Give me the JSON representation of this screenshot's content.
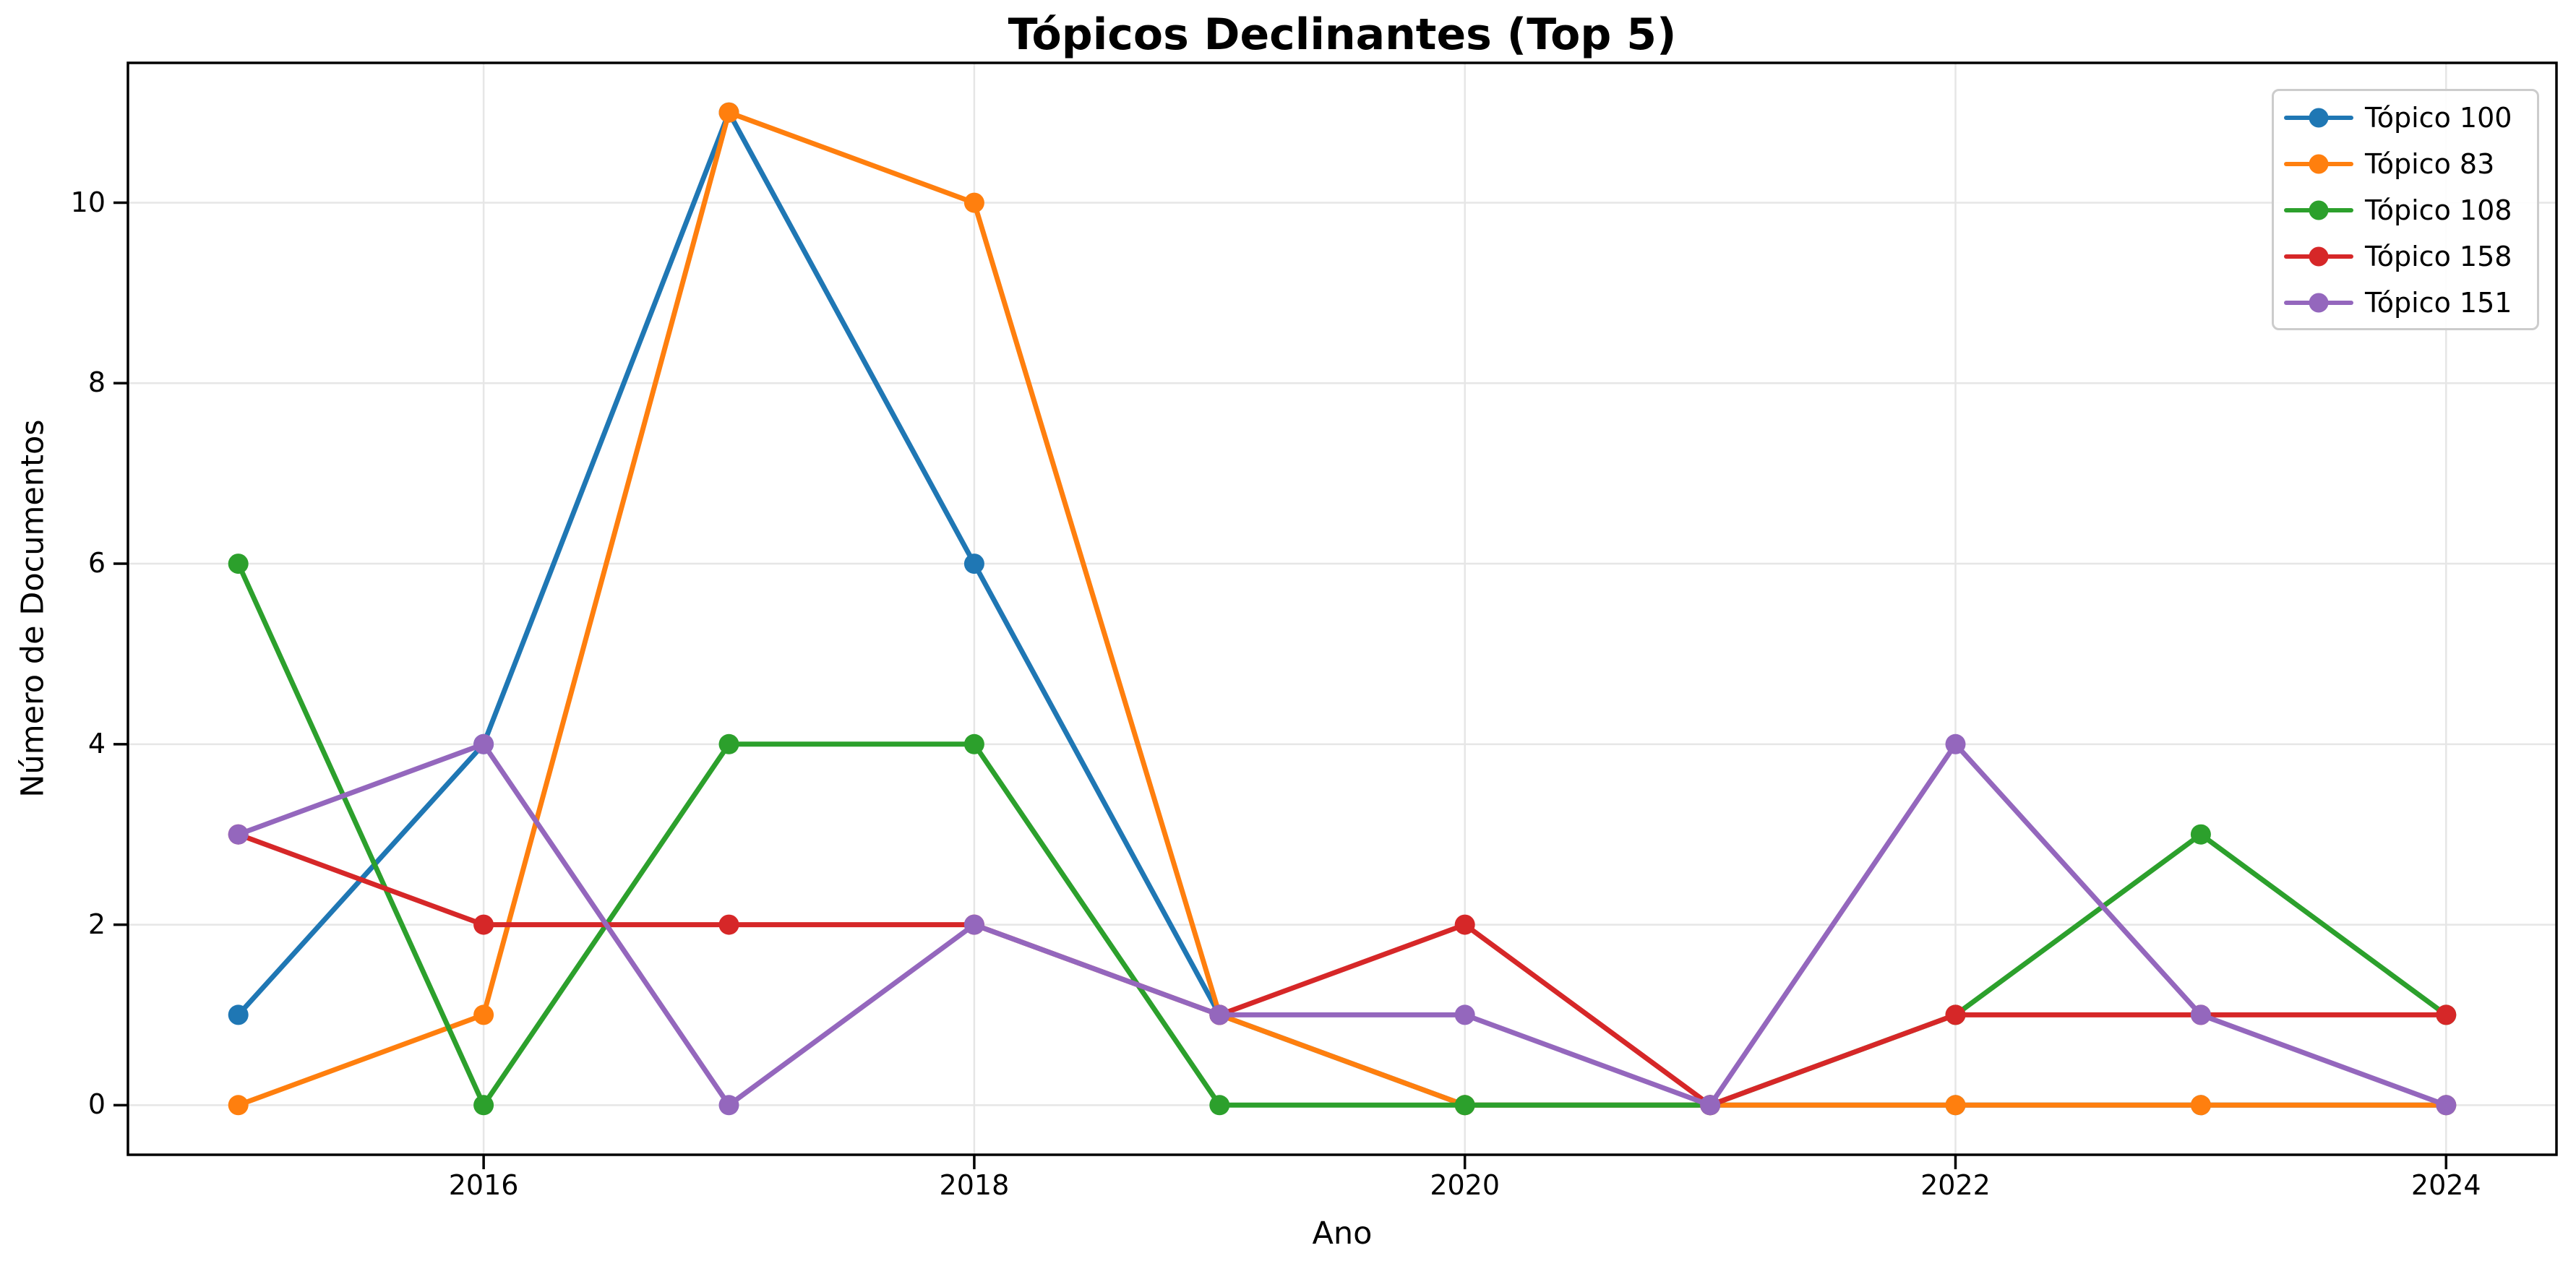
{
  "title": "Tópicos Declinantes (Top 5)",
  "axes": {
    "xlabel": "Ano",
    "ylabel": "Número de Documentos"
  },
  "chart_data": {
    "type": "line",
    "x": [
      2015,
      2016,
      2017,
      2018,
      2019,
      2020,
      2021,
      2022,
      2023,
      2024
    ],
    "series": [
      {
        "name": "Tópico 100",
        "color": "#1f77b4",
        "values": [
          1,
          4,
          11,
          6,
          1,
          0,
          0,
          0,
          0,
          0
        ]
      },
      {
        "name": "Tópico 83",
        "color": "#ff7f0e",
        "values": [
          0,
          1,
          11,
          10,
          1,
          0,
          0,
          0,
          0,
          0
        ]
      },
      {
        "name": "Tópico 108",
        "color": "#2ca02c",
        "values": [
          6,
          0,
          4,
          4,
          0,
          0,
          0,
          1,
          3,
          1
        ]
      },
      {
        "name": "Tópico 158",
        "color": "#d62728",
        "values": [
          3,
          2,
          2,
          2,
          1,
          2,
          0,
          1,
          1,
          1
        ]
      },
      {
        "name": "Tópico 151",
        "color": "#9467bd",
        "values": [
          3,
          4,
          0,
          2,
          1,
          1,
          0,
          4,
          1,
          0
        ]
      }
    ],
    "x_ticks": [
      "2016",
      "2018",
      "2020",
      "2022",
      "2024"
    ],
    "x_tick_values": [
      2016,
      2018,
      2020,
      2022,
      2024
    ],
    "y_ticks": [
      "0",
      "2",
      "4",
      "6",
      "8",
      "10"
    ],
    "y_tick_values": [
      0,
      2,
      4,
      6,
      8,
      10
    ],
    "xlim": [
      2014.55,
      2024.45
    ],
    "ylim": [
      -0.55,
      11.55
    ],
    "grid": true,
    "legend_position": "upper right"
  },
  "style": {
    "background": "#ffffff",
    "grid_color": "#e6e6e6",
    "spine_color": "#000000",
    "text_color": "#000000",
    "legend_border_color": "#cccccc",
    "line_width": 7,
    "marker_radius": 14
  }
}
